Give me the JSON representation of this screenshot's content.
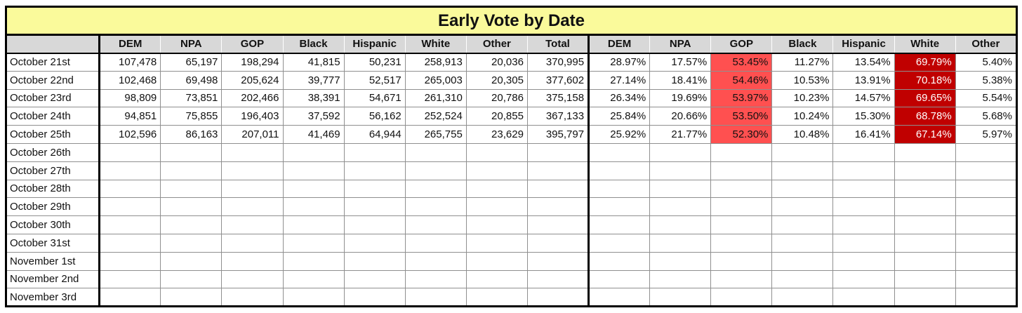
{
  "title": "Early Vote by Date",
  "colors": {
    "title_bg": "#fafa9b",
    "header_bg": "#d8d8d8",
    "gop_pct_bg": "#ff5050",
    "white_pct_bg": "#c00000",
    "white_pct_text": "#ffffff"
  },
  "highlights": {
    "gop_pct_col": 11,
    "white_pct_col": 14
  },
  "chart_data": {
    "type": "table",
    "title": "Early Vote by Date",
    "columns": [
      "",
      "DEM",
      "NPA",
      "GOP",
      "Black",
      "Hispanic",
      "White",
      "Other",
      "Total",
      "DEM",
      "NPA",
      "GOP",
      "Black",
      "Hispanic",
      "White",
      "Other"
    ],
    "rows": [
      [
        "October 21st",
        "107,478",
        "65,197",
        "198,294",
        "41,815",
        "50,231",
        "258,913",
        "20,036",
        "370,995",
        "28.97%",
        "17.57%",
        "53.45%",
        "11.27%",
        "13.54%",
        "69.79%",
        "5.40%"
      ],
      [
        "October 22nd",
        "102,468",
        "69,498",
        "205,624",
        "39,777",
        "52,517",
        "265,003",
        "20,305",
        "377,602",
        "27.14%",
        "18.41%",
        "54.46%",
        "10.53%",
        "13.91%",
        "70.18%",
        "5.38%"
      ],
      [
        "October 23rd",
        "98,809",
        "73,851",
        "202,466",
        "38,391",
        "54,671",
        "261,310",
        "20,786",
        "375,158",
        "26.34%",
        "19.69%",
        "53.97%",
        "10.23%",
        "14.57%",
        "69.65%",
        "5.54%"
      ],
      [
        "October 24th",
        "94,851",
        "75,855",
        "196,403",
        "37,592",
        "56,162",
        "252,524",
        "20,855",
        "367,133",
        "25.84%",
        "20.66%",
        "53.50%",
        "10.24%",
        "15.30%",
        "68.78%",
        "5.68%"
      ],
      [
        "October 25th",
        "102,596",
        "86,163",
        "207,011",
        "41,469",
        "64,944",
        "265,755",
        "23,629",
        "395,797",
        "25.92%",
        "21.77%",
        "52.30%",
        "10.48%",
        "16.41%",
        "67.14%",
        "5.97%"
      ],
      [
        "October 26th",
        "",
        "",
        "",
        "",
        "",
        "",
        "",
        "",
        "",
        "",
        "",
        "",
        "",
        "",
        ""
      ],
      [
        "October 27th",
        "",
        "",
        "",
        "",
        "",
        "",
        "",
        "",
        "",
        "",
        "",
        "",
        "",
        "",
        ""
      ],
      [
        "October 28th",
        "",
        "",
        "",
        "",
        "",
        "",
        "",
        "",
        "",
        "",
        "",
        "",
        "",
        "",
        ""
      ],
      [
        "October 29th",
        "",
        "",
        "",
        "",
        "",
        "",
        "",
        "",
        "",
        "",
        "",
        "",
        "",
        "",
        ""
      ],
      [
        "October 30th",
        "",
        "",
        "",
        "",
        "",
        "",
        "",
        "",
        "",
        "",
        "",
        "",
        "",
        "",
        ""
      ],
      [
        "October 31st",
        "",
        "",
        "",
        "",
        "",
        "",
        "",
        "",
        "",
        "",
        "",
        "",
        "",
        "",
        ""
      ],
      [
        "November 1st",
        "",
        "",
        "",
        "",
        "",
        "",
        "",
        "",
        "",
        "",
        "",
        "",
        "",
        "",
        ""
      ],
      [
        "November 2nd",
        "",
        "",
        "",
        "",
        "",
        "",
        "",
        "",
        "",
        "",
        "",
        "",
        "",
        "",
        ""
      ],
      [
        "November 3rd",
        "",
        "",
        "",
        "",
        "",
        "",
        "",
        "",
        "",
        "",
        "",
        "",
        "",
        "",
        ""
      ]
    ]
  }
}
